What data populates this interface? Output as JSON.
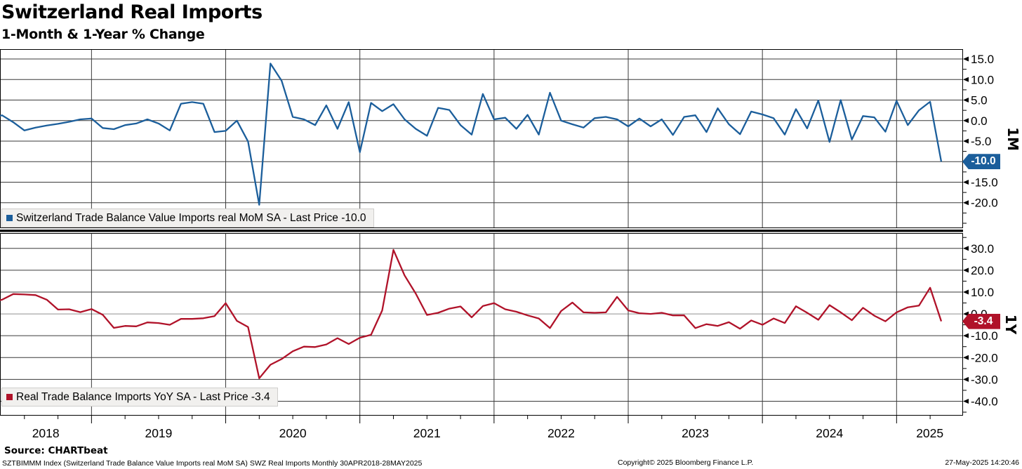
{
  "header": {
    "title": "Switzerland Real Imports",
    "subtitle": "1-Month & 1-Year % Change"
  },
  "colors": {
    "line_1m": "#1b5e9b",
    "line_1y": "#b01229",
    "grid": "#3a3a3a",
    "zero_line_gray": "#8f8f8f",
    "legend_bg": "#f1f0ee",
    "frame": "#000000"
  },
  "chart_data": {
    "type": "line",
    "title": "Switzerland Real Imports",
    "subtitle": "1-Month & 1-Year % Change",
    "x": {
      "freq": "monthly",
      "start": "2018-04",
      "end": "2025-05",
      "year_labels": [
        "2018",
        "2019",
        "2020",
        "2021",
        "2022",
        "2023",
        "2024",
        "2025"
      ],
      "year_gridline_indices": [
        9,
        21,
        33,
        45,
        57,
        69,
        81
      ],
      "minor_tick": "quarterly"
    },
    "panels": [
      {
        "id": "1M",
        "axis_label": "1M",
        "legend": "Switzerland Trade Balance Value Imports real MoM SA - Last Price -10.0",
        "series_name": "Switzerland Trade Balance Value Imports real MoM SA",
        "last_price": -10.0,
        "badge_value": "-10.0",
        "color": "#1b5e9b",
        "zero_line_color": "#3a3a3a",
        "y_major_ticks": [
          15.0,
          10.0,
          5.0,
          0.0,
          -5.0,
          -10.0,
          -15.0,
          -20.0
        ],
        "y_minor_step": 2.5,
        "ylim_top": 17.4,
        "ylim_bottom": -26.2,
        "values": [
          0.5,
          1.3,
          -0.4,
          -2.4,
          -1.7,
          -1.2,
          -0.8,
          -0.3,
          0.3,
          0.5,
          -1.8,
          -2.1,
          -1.1,
          -0.7,
          0.3,
          -0.7,
          -2.4,
          4.1,
          4.5,
          4.1,
          -2.8,
          -2.5,
          0.0,
          -5.1,
          -20.5,
          13.9,
          9.7,
          0.9,
          0.3,
          -1.1,
          3.7,
          -2.0,
          4.5,
          -7.7,
          4.3,
          2.3,
          4.0,
          0.3,
          -2.0,
          -3.7,
          3.1,
          2.6,
          -1.1,
          -3.4,
          6.5,
          0.3,
          0.7,
          -2.0,
          1.4,
          -3.4,
          6.8,
          0.0,
          -0.9,
          -1.7,
          0.6,
          0.9,
          0.3,
          -1.4,
          0.5,
          -1.4,
          0.3,
          -3.5,
          0.9,
          1.3,
          -2.8,
          3.0,
          -0.9,
          -3.3,
          2.2,
          1.5,
          0.6,
          -3.4,
          2.8,
          -1.9,
          4.9,
          -5.2,
          5.0,
          -4.6,
          1.1,
          0.8,
          -2.7,
          4.8,
          -1.1,
          2.5,
          4.6,
          -10.0
        ]
      },
      {
        "id": "1Y",
        "axis_label": "1Y",
        "legend": "Real Trade Balance Imports YoY SA - Last Price -3.4",
        "series_name": "Real Trade Balance Imports YoY SA",
        "last_price": -3.4,
        "badge_value": "-3.4",
        "color": "#b01229",
        "zero_line_color": "#8f8f8f",
        "y_major_ticks": [
          30.0,
          20.0,
          10.0,
          0.0,
          -10.0,
          -20.0,
          -30.0,
          -40.0
        ],
        "y_minor_step": 5,
        "ylim_top": 37.0,
        "ylim_bottom": -46.6,
        "values": [
          5.5,
          6.5,
          9.1,
          8.9,
          8.6,
          6.5,
          2.0,
          2.1,
          0.8,
          2.2,
          -0.4,
          -6.4,
          -5.5,
          -5.7,
          -3.9,
          -4.2,
          -5.0,
          -2.3,
          -2.3,
          -2.0,
          -1.0,
          4.9,
          -3.2,
          -6.0,
          -29.5,
          -23.3,
          -20.7,
          -17.1,
          -15.0,
          -15.2,
          -14.0,
          -11.1,
          -13.8,
          -10.9,
          -9.6,
          1.6,
          29.3,
          17.6,
          9.3,
          -0.5,
          0.5,
          2.4,
          3.4,
          -1.6,
          3.6,
          4.9,
          2.1,
          1.0,
          -0.7,
          -2.1,
          -6.5,
          1.3,
          5.2,
          0.7,
          0.5,
          0.7,
          7.8,
          1.6,
          0.3,
          0.0,
          0.5,
          -0.7,
          -0.7,
          -6.5,
          -4.7,
          -5.5,
          -3.8,
          -6.8,
          -3.0,
          -5.0,
          -2.1,
          -4.2,
          3.5,
          0.5,
          -2.7,
          4.0,
          0.7,
          -2.9,
          2.8,
          -0.8,
          -3.4,
          0.7,
          3.0,
          3.8,
          12.0,
          -3.4
        ]
      }
    ]
  },
  "footer": {
    "source": "Source: CHARTbeat",
    "description": "SZTBIMMM Index (Switzerland Trade Balance Value Imports real MoM SA) SWZ Real Imports  Monthly 30APR2018-28MAY2025",
    "copyright": "Copyright© 2025 Bloomberg Finance L.P.",
    "timestamp": "27-May-2025 14:20:46"
  }
}
